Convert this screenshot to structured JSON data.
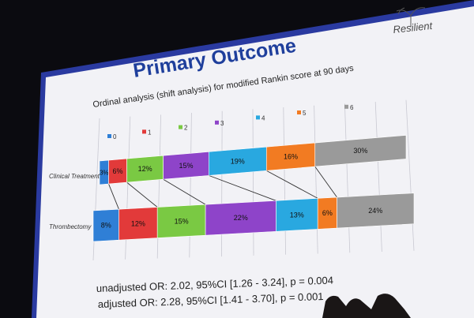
{
  "slide": {
    "title": "Primary Outcome",
    "subtitle": "Ordinal analysis (shift analysis) for modified Rankin score at 90 days",
    "logo_text": "Resilient",
    "stats": {
      "unadjusted": "unadjusted  OR: 2.02, 95%CI [1.26 - 3.24], p = 0.004",
      "adjusted": "adjusted OR: 2.28, 95%CI [1.41 - 3.70], p = 0.001"
    }
  },
  "colors": {
    "screen_bg": "#0b0b10",
    "slide_bg": "#f2f2f6",
    "title": "#1f3f9c",
    "frame": "#2a3aa0"
  },
  "chart_data": {
    "type": "bar",
    "orientation": "horizontal-stacked-100",
    "categories": [
      "Clinical Treatment",
      "Thrombectomy"
    ],
    "legend": [
      {
        "name": "0",
        "color": "#2f7fd6"
      },
      {
        "name": "1",
        "color": "#e23a3a"
      },
      {
        "name": "2",
        "color": "#7ac943"
      },
      {
        "name": "3",
        "color": "#8e44c9"
      },
      {
        "name": "4",
        "color": "#29a8e0"
      },
      {
        "name": "5",
        "color": "#f27b22"
      },
      {
        "name": "6",
        "color": "#9a9a9a"
      }
    ],
    "series": [
      {
        "name": "0",
        "values": [
          3,
          8
        ],
        "labels": [
          "3%",
          "8%"
        ]
      },
      {
        "name": "1",
        "values": [
          6,
          12
        ],
        "labels": [
          "6%",
          "12%"
        ]
      },
      {
        "name": "2",
        "values": [
          12,
          15
        ],
        "labels": [
          "12%",
          "15%"
        ]
      },
      {
        "name": "3",
        "values": [
          15,
          22
        ],
        "labels": [
          "15%",
          "22%"
        ]
      },
      {
        "name": "4",
        "values": [
          19,
          13
        ],
        "labels": [
          "19%",
          "13%"
        ]
      },
      {
        "name": "5",
        "values": [
          16,
          6
        ],
        "labels": [
          "16%",
          "6%"
        ]
      },
      {
        "name": "6",
        "values": [
          30,
          24
        ],
        "labels": [
          "30%",
          "24%"
        ]
      }
    ],
    "xlim": [
      0,
      100
    ],
    "grid": true,
    "legend_position": "top"
  }
}
